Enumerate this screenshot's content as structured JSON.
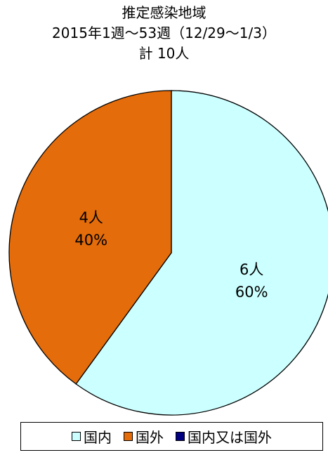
{
  "colors": {
    "domestic": "#ccffff",
    "overseas": "#e46c0a",
    "either": "#000080",
    "outline": "#000000"
  },
  "chart_data": {
    "type": "pie",
    "title": "推定感染地域",
    "subtitle": "2015年1週〜53週（12/29〜1/3）",
    "total_label": "計 10人",
    "slices": [
      {
        "name": "国内",
        "value": 6,
        "percent": 60,
        "count_label": "6人",
        "percent_label": "60%",
        "color": "#ccffff"
      },
      {
        "name": "国外",
        "value": 4,
        "percent": 40,
        "count_label": "4人",
        "percent_label": "40%",
        "color": "#e46c0a"
      },
      {
        "name": "国内又は国外",
        "value": 0,
        "percent": 0,
        "count_label": "",
        "percent_label": "",
        "color": "#000080"
      }
    ],
    "start_angle": "12 o'clock",
    "direction": "clockwise",
    "legend_position": "bottom"
  }
}
